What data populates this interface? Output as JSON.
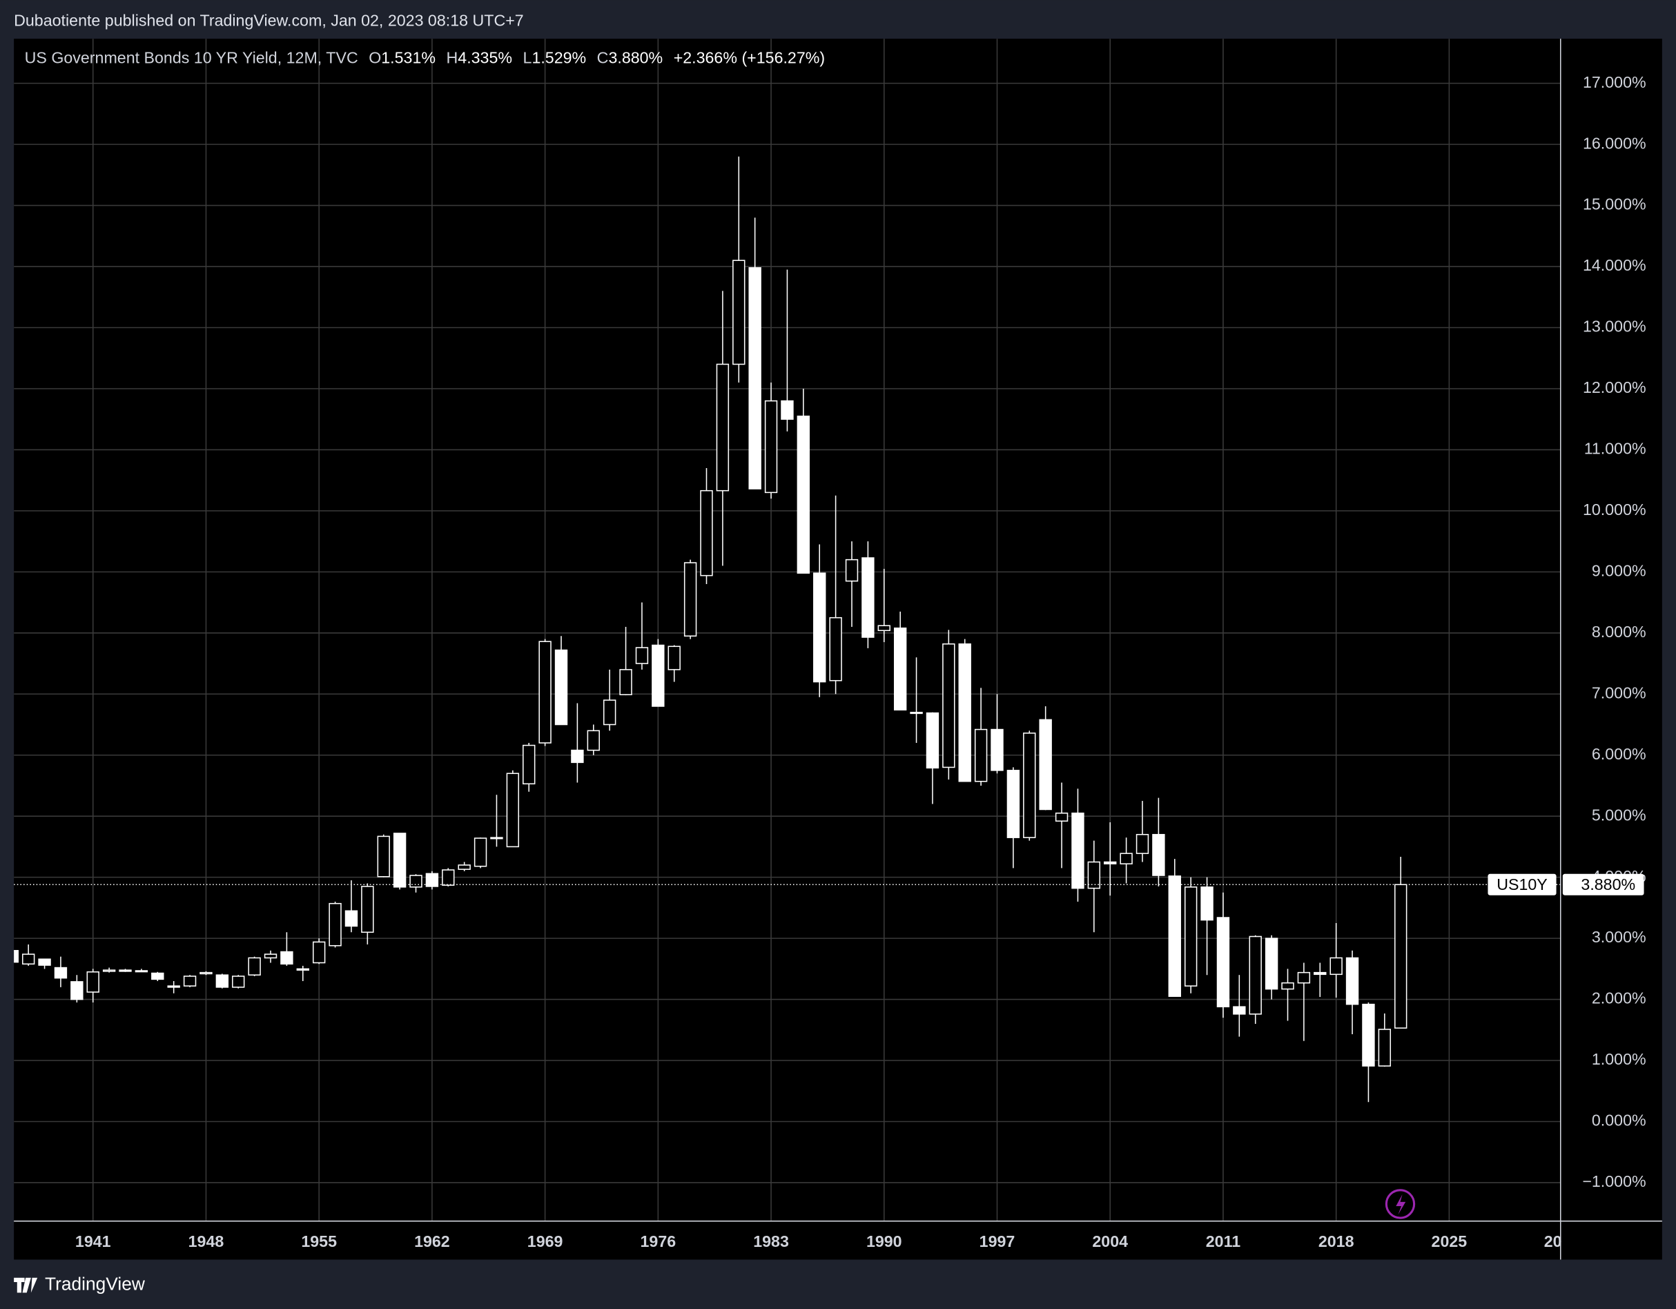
{
  "header": {
    "published": "Dubaotiente published on TradingView.com, Jan 02, 2023 08:18 UTC+7",
    "footer": "TradingView"
  },
  "chart_data": {
    "type": "candlestick",
    "title": "US Government Bonds 10 YR Yield, 12M, TVC",
    "legend_items": [
      {
        "key": "O",
        "text": "1.531%"
      },
      {
        "key": "H",
        "text": "4.335%"
      },
      {
        "key": "L",
        "text": "1.529%"
      },
      {
        "key": "C",
        "text": "3.880%"
      }
    ],
    "change": "+2.366% (+156.27%)",
    "last_price": {
      "label": "US10Y",
      "value": 3.88,
      "value_label": "3.880%"
    },
    "colors": {
      "up_body": "#000000",
      "down_body": "#ffffff",
      "wick": "#ffffff",
      "grid": "#3a3a3a"
    },
    "grid": true,
    "x": [
      1936,
      1937,
      1938,
      1939,
      1940,
      1941,
      1942,
      1943,
      1944,
      1945,
      1946,
      1947,
      1948,
      1949,
      1950,
      1951,
      1952,
      1953,
      1954,
      1955,
      1956,
      1957,
      1958,
      1959,
      1960,
      1961,
      1962,
      1963,
      1964,
      1965,
      1966,
      1967,
      1968,
      1969,
      1970,
      1971,
      1972,
      1973,
      1974,
      1975,
      1976,
      1977,
      1978,
      1979,
      1980,
      1981,
      1982,
      1983,
      1984,
      1985,
      1986,
      1987,
      1988,
      1989,
      1990,
      1991,
      1992,
      1993,
      1994,
      1995,
      1996,
      1997,
      1998,
      1999,
      2000,
      2001,
      2002,
      2003,
      2004,
      2005,
      2006,
      2007,
      2008,
      2009,
      2010,
      2011,
      2012,
      2013,
      2014,
      2015,
      2016,
      2017,
      2018,
      2019,
      2020,
      2021,
      2022
    ],
    "open": [
      2.8,
      2.58,
      2.66,
      2.52,
      2.29,
      2.12,
      2.46,
      2.48,
      2.46,
      2.43,
      2.22,
      2.22,
      2.42,
      2.4,
      2.2,
      2.4,
      2.68,
      2.78,
      2.5,
      2.6,
      2.88,
      3.45,
      3.1,
      4.01,
      4.72,
      3.84,
      4.06,
      3.87,
      4.13,
      4.18,
      4.65,
      4.5,
      5.53,
      6.2,
      7.72,
      6.08,
      6.08,
      6.5,
      6.99,
      7.5,
      7.8,
      7.4,
      7.95,
      8.94,
      10.33,
      12.4,
      13.98,
      10.3,
      11.8,
      11.55,
      8.98,
      7.22,
      8.85,
      9.23,
      8.04,
      8.08,
      6.7,
      6.69,
      5.8,
      7.82,
      5.57,
      6.42,
      5.75,
      4.65,
      6.58,
      4.92,
      5.05,
      3.82,
      4.25,
      4.22,
      4.39,
      4.7,
      4.02,
      2.22,
      3.84,
      3.34,
      1.88,
      1.76,
      3.0,
      2.17,
      2.27,
      2.44,
      2.41,
      2.68,
      1.92,
      0.91,
      1.531
    ],
    "high": [
      2.85,
      2.9,
      2.66,
      2.7,
      2.4,
      2.5,
      2.52,
      2.5,
      2.5,
      2.45,
      2.3,
      2.4,
      2.46,
      2.42,
      2.4,
      2.7,
      2.8,
      3.1,
      2.55,
      3.0,
      3.6,
      3.95,
      3.9,
      4.7,
      4.72,
      4.05,
      4.1,
      4.15,
      4.25,
      4.65,
      5.35,
      5.75,
      6.2,
      7.9,
      7.95,
      6.85,
      6.5,
      7.4,
      8.1,
      8.5,
      7.9,
      7.8,
      9.2,
      10.7,
      13.6,
      15.8,
      14.8,
      12.1,
      13.95,
      12.0,
      9.45,
      10.25,
      9.5,
      9.5,
      9.05,
      8.35,
      7.6,
      6.7,
      8.05,
      7.9,
      7.1,
      7.0,
      5.8,
      6.4,
      6.8,
      5.55,
      5.45,
      4.6,
      4.9,
      4.65,
      5.25,
      5.3,
      4.3,
      4.0,
      4.0,
      3.75,
      2.4,
      3.05,
      3.05,
      2.5,
      2.6,
      2.6,
      3.25,
      2.8,
      1.95,
      1.77,
      4.335
    ],
    "low": [
      2.55,
      2.55,
      2.5,
      2.2,
      1.95,
      1.95,
      2.44,
      2.45,
      2.45,
      2.3,
      2.1,
      2.2,
      2.4,
      2.18,
      2.18,
      2.38,
      2.6,
      2.55,
      2.3,
      2.58,
      2.85,
      3.1,
      2.9,
      4.0,
      3.8,
      3.75,
      3.8,
      3.85,
      4.1,
      4.15,
      4.5,
      4.5,
      5.4,
      6.15,
      6.5,
      5.55,
      6.0,
      6.4,
      6.98,
      7.4,
      6.8,
      7.2,
      7.9,
      8.8,
      9.1,
      12.1,
      10.36,
      10.2,
      11.3,
      8.98,
      6.95,
      7.0,
      8.1,
      7.75,
      7.85,
      6.74,
      6.2,
      5.2,
      5.6,
      5.57,
      5.5,
      5.7,
      4.15,
      4.6,
      5.1,
      4.15,
      3.6,
      3.1,
      3.7,
      3.9,
      4.25,
      3.85,
      2.05,
      2.1,
      2.4,
      1.7,
      1.39,
      1.6,
      2.0,
      1.65,
      1.32,
      2.04,
      2.03,
      1.43,
      0.32,
      0.9,
      1.529
    ],
    "close": [
      2.61,
      2.74,
      2.56,
      2.35,
      2.0,
      2.45,
      2.48,
      2.46,
      2.47,
      2.33,
      2.2,
      2.38,
      2.44,
      2.2,
      2.38,
      2.68,
      2.74,
      2.58,
      2.48,
      2.94,
      3.57,
      3.2,
      3.85,
      4.67,
      3.84,
      4.03,
      3.85,
      4.12,
      4.2,
      4.64,
      4.64,
      5.7,
      6.16,
      7.86,
      6.5,
      5.88,
      6.4,
      6.9,
      7.4,
      7.76,
      6.8,
      7.78,
      9.15,
      10.33,
      12.4,
      14.1,
      10.36,
      11.8,
      11.5,
      8.98,
      7.2,
      8.25,
      9.2,
      7.93,
      8.12,
      6.74,
      6.69,
      5.79,
      7.82,
      5.57,
      6.42,
      5.75,
      4.65,
      6.36,
      5.11,
      5.05,
      3.82,
      4.25,
      4.22,
      4.39,
      4.7,
      4.03,
      2.05,
      3.84,
      3.3,
      1.88,
      1.76,
      3.03,
      2.17,
      2.27,
      2.44,
      2.41,
      2.68,
      1.92,
      0.91,
      1.51,
      3.88
    ],
    "xlim": [
      1936.1,
      2031.9
    ],
    "xticks": [
      1941,
      1948,
      1955,
      1962,
      1969,
      1976,
      1983,
      1990,
      1997,
      2004,
      2011,
      2018,
      2025,
      {
        "value": 2032,
        "label": "20"
      }
    ],
    "ylim": [
      -1.63,
      17.73
    ],
    "yticks": [
      {
        "value": -1,
        "label": "−1.000%"
      },
      {
        "value": 0,
        "label": "0.000%"
      },
      {
        "value": 1,
        "label": "1.000%"
      },
      {
        "value": 2,
        "label": "2.000%"
      },
      {
        "value": 3,
        "label": "3.000%"
      },
      {
        "value": 4,
        "label": "4.000%"
      },
      {
        "value": 5,
        "label": "5.000%"
      },
      {
        "value": 6,
        "label": "6.000%"
      },
      {
        "value": 7,
        "label": "7.000%"
      },
      {
        "value": 8,
        "label": "8.000%"
      },
      {
        "value": 9,
        "label": "9.000%"
      },
      {
        "value": 10,
        "label": "10.000%"
      },
      {
        "value": 11,
        "label": "11.000%"
      },
      {
        "value": 12,
        "label": "12.000%"
      },
      {
        "value": 13,
        "label": "13.000%"
      },
      {
        "value": 14,
        "label": "14.000%"
      },
      {
        "value": 15,
        "label": "15.000%"
      },
      {
        "value": 16,
        "label": "16.000%"
      },
      {
        "value": 17,
        "label": "17.000%"
      }
    ]
  }
}
